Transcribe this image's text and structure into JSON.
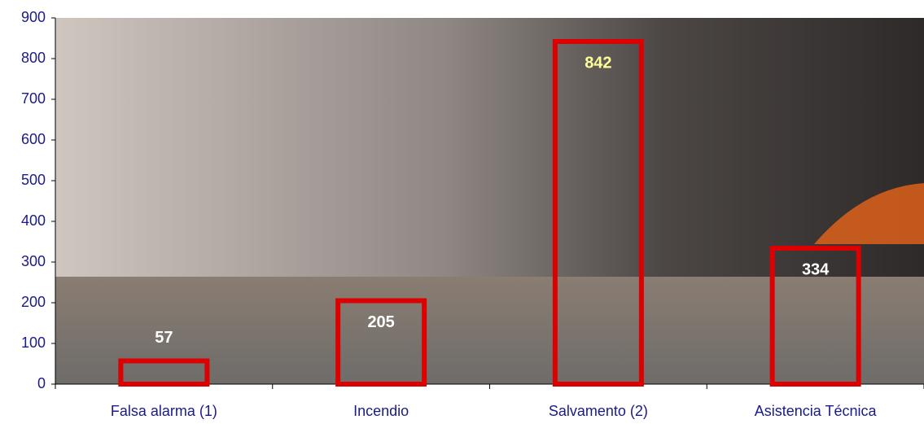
{
  "chart_data": {
    "type": "bar",
    "categories": [
      "Falsa alarma (1)",
      "Incendio",
      "Salvamento (2)",
      "Asistencia Técnica"
    ],
    "values": [
      57,
      205,
      842,
      334
    ],
    "color": "#dd0000",
    "label_colors": [
      "#ffffff",
      "#ffffff",
      "#ffff99",
      "#ffffff"
    ],
    "ylim": [
      0,
      900
    ],
    "yticks": [
      0,
      100,
      200,
      300,
      400,
      500,
      600,
      700,
      800,
      900
    ]
  }
}
